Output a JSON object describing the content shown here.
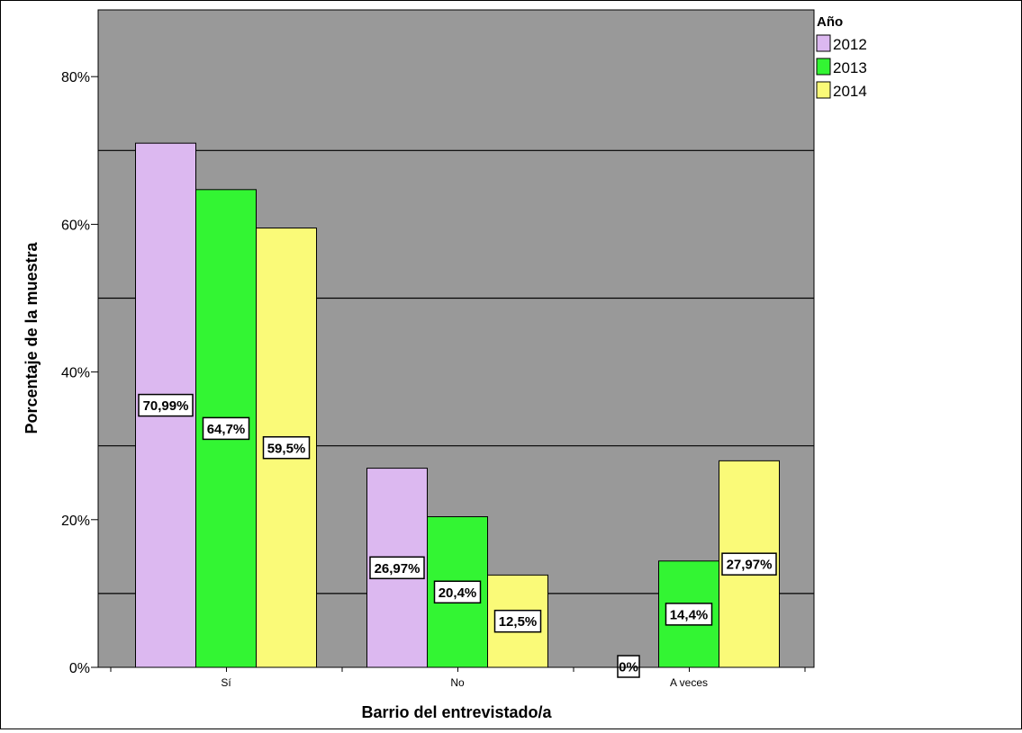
{
  "chart_data": {
    "type": "bar",
    "xlabel": "Barrio del entrevistado/a",
    "ylabel": "Porcentaje de la muestra",
    "categories": [
      "Sí",
      "No",
      "A veces"
    ],
    "ylim": [
      0,
      88
    ],
    "y_ticks": [
      0,
      20,
      40,
      60,
      80
    ],
    "y_tick_labels": [
      "0%",
      "20%",
      "40%",
      "60%",
      "80%"
    ],
    "gridlines": [
      10,
      30,
      50,
      70
    ],
    "grid": true,
    "legend": {
      "title": "Año",
      "position": "top-right outside plot"
    },
    "series": [
      {
        "name": "2012",
        "color": "#dcb8f0",
        "values": [
          70.99,
          26.97,
          0
        ],
        "labels": [
          "70,99%",
          "26,97%",
          "0%"
        ]
      },
      {
        "name": "2013",
        "color": "#33f533",
        "values": [
          64.7,
          20.4,
          14.4
        ],
        "labels": [
          "64,7%",
          "20,4%",
          "14,4%"
        ]
      },
      {
        "name": "2014",
        "color": "#fafa78",
        "values": [
          59.5,
          12.5,
          27.97
        ],
        "labels": [
          "59,5%",
          "12,5%",
          "27,97%"
        ]
      }
    ],
    "plot_background": "#999999"
  }
}
